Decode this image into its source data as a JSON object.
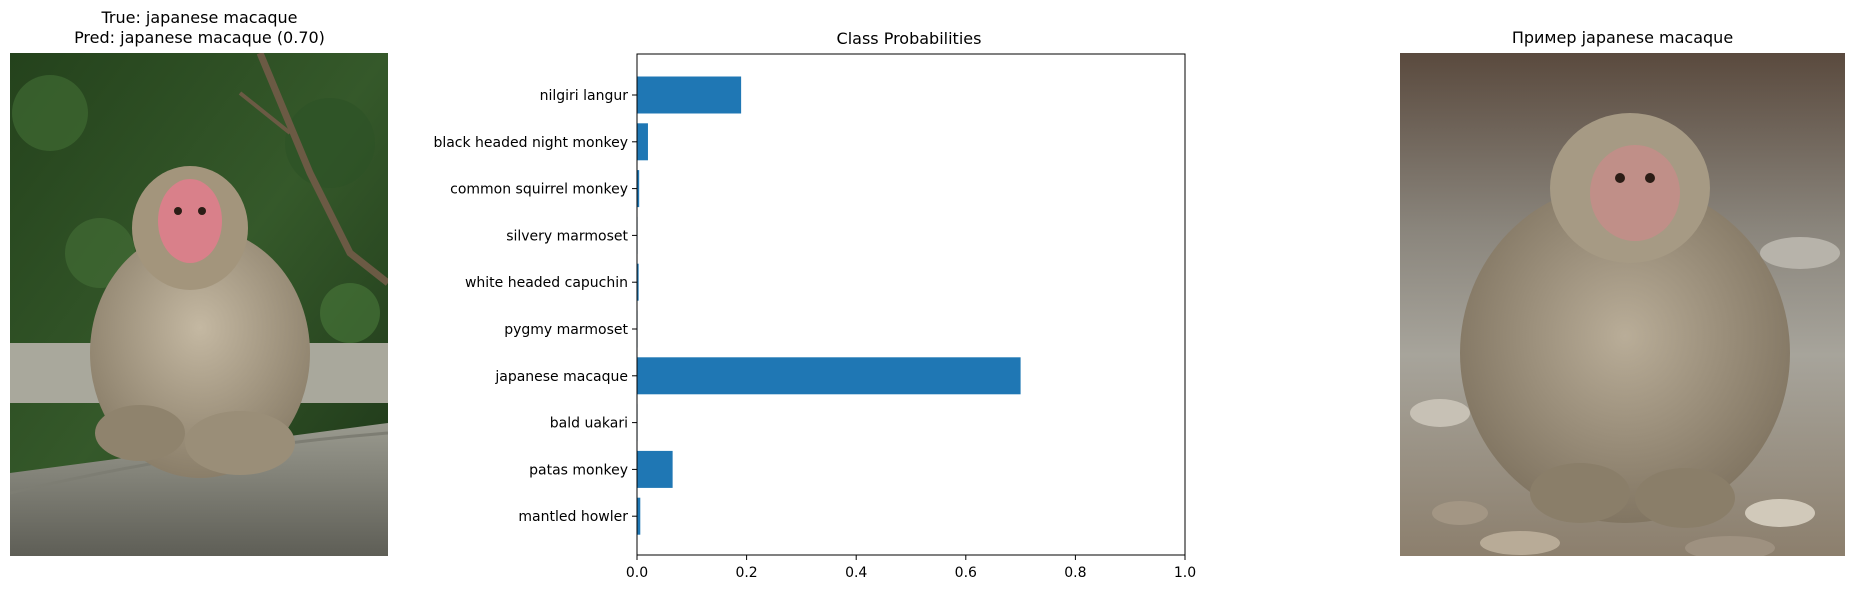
{
  "left_panel": {
    "title_line1": "True: japanese macaque",
    "title_line2": "Pred: japanese macaque (0.70)",
    "image_subject": "japanese macaque on stone fence, forest background"
  },
  "right_panel": {
    "title": "Пример japanese macaque",
    "image_subject": "japanese macaque sitting on river pebbles"
  },
  "chart_data": {
    "type": "bar",
    "orientation": "horizontal",
    "title": "Class Probabilities",
    "categories": [
      "nilgiri langur",
      "black headed night monkey",
      "common squirrel monkey",
      "silvery marmoset",
      "white headed capuchin",
      "pygmy marmoset",
      "japanese macaque",
      "bald uakari",
      "patas monkey",
      "mantled howler"
    ],
    "values": [
      0.19,
      0.02,
      0.004,
      0.001,
      0.003,
      0.001,
      0.7,
      0.001,
      0.065,
      0.006
    ],
    "xlim": [
      0,
      1.0
    ],
    "xticks": [
      "0.0",
      "0.2",
      "0.4",
      "0.6",
      "0.8",
      "1.0"
    ],
    "xlabel": "",
    "ylabel": "",
    "grid": false,
    "bar_color": "#1f77b4"
  }
}
